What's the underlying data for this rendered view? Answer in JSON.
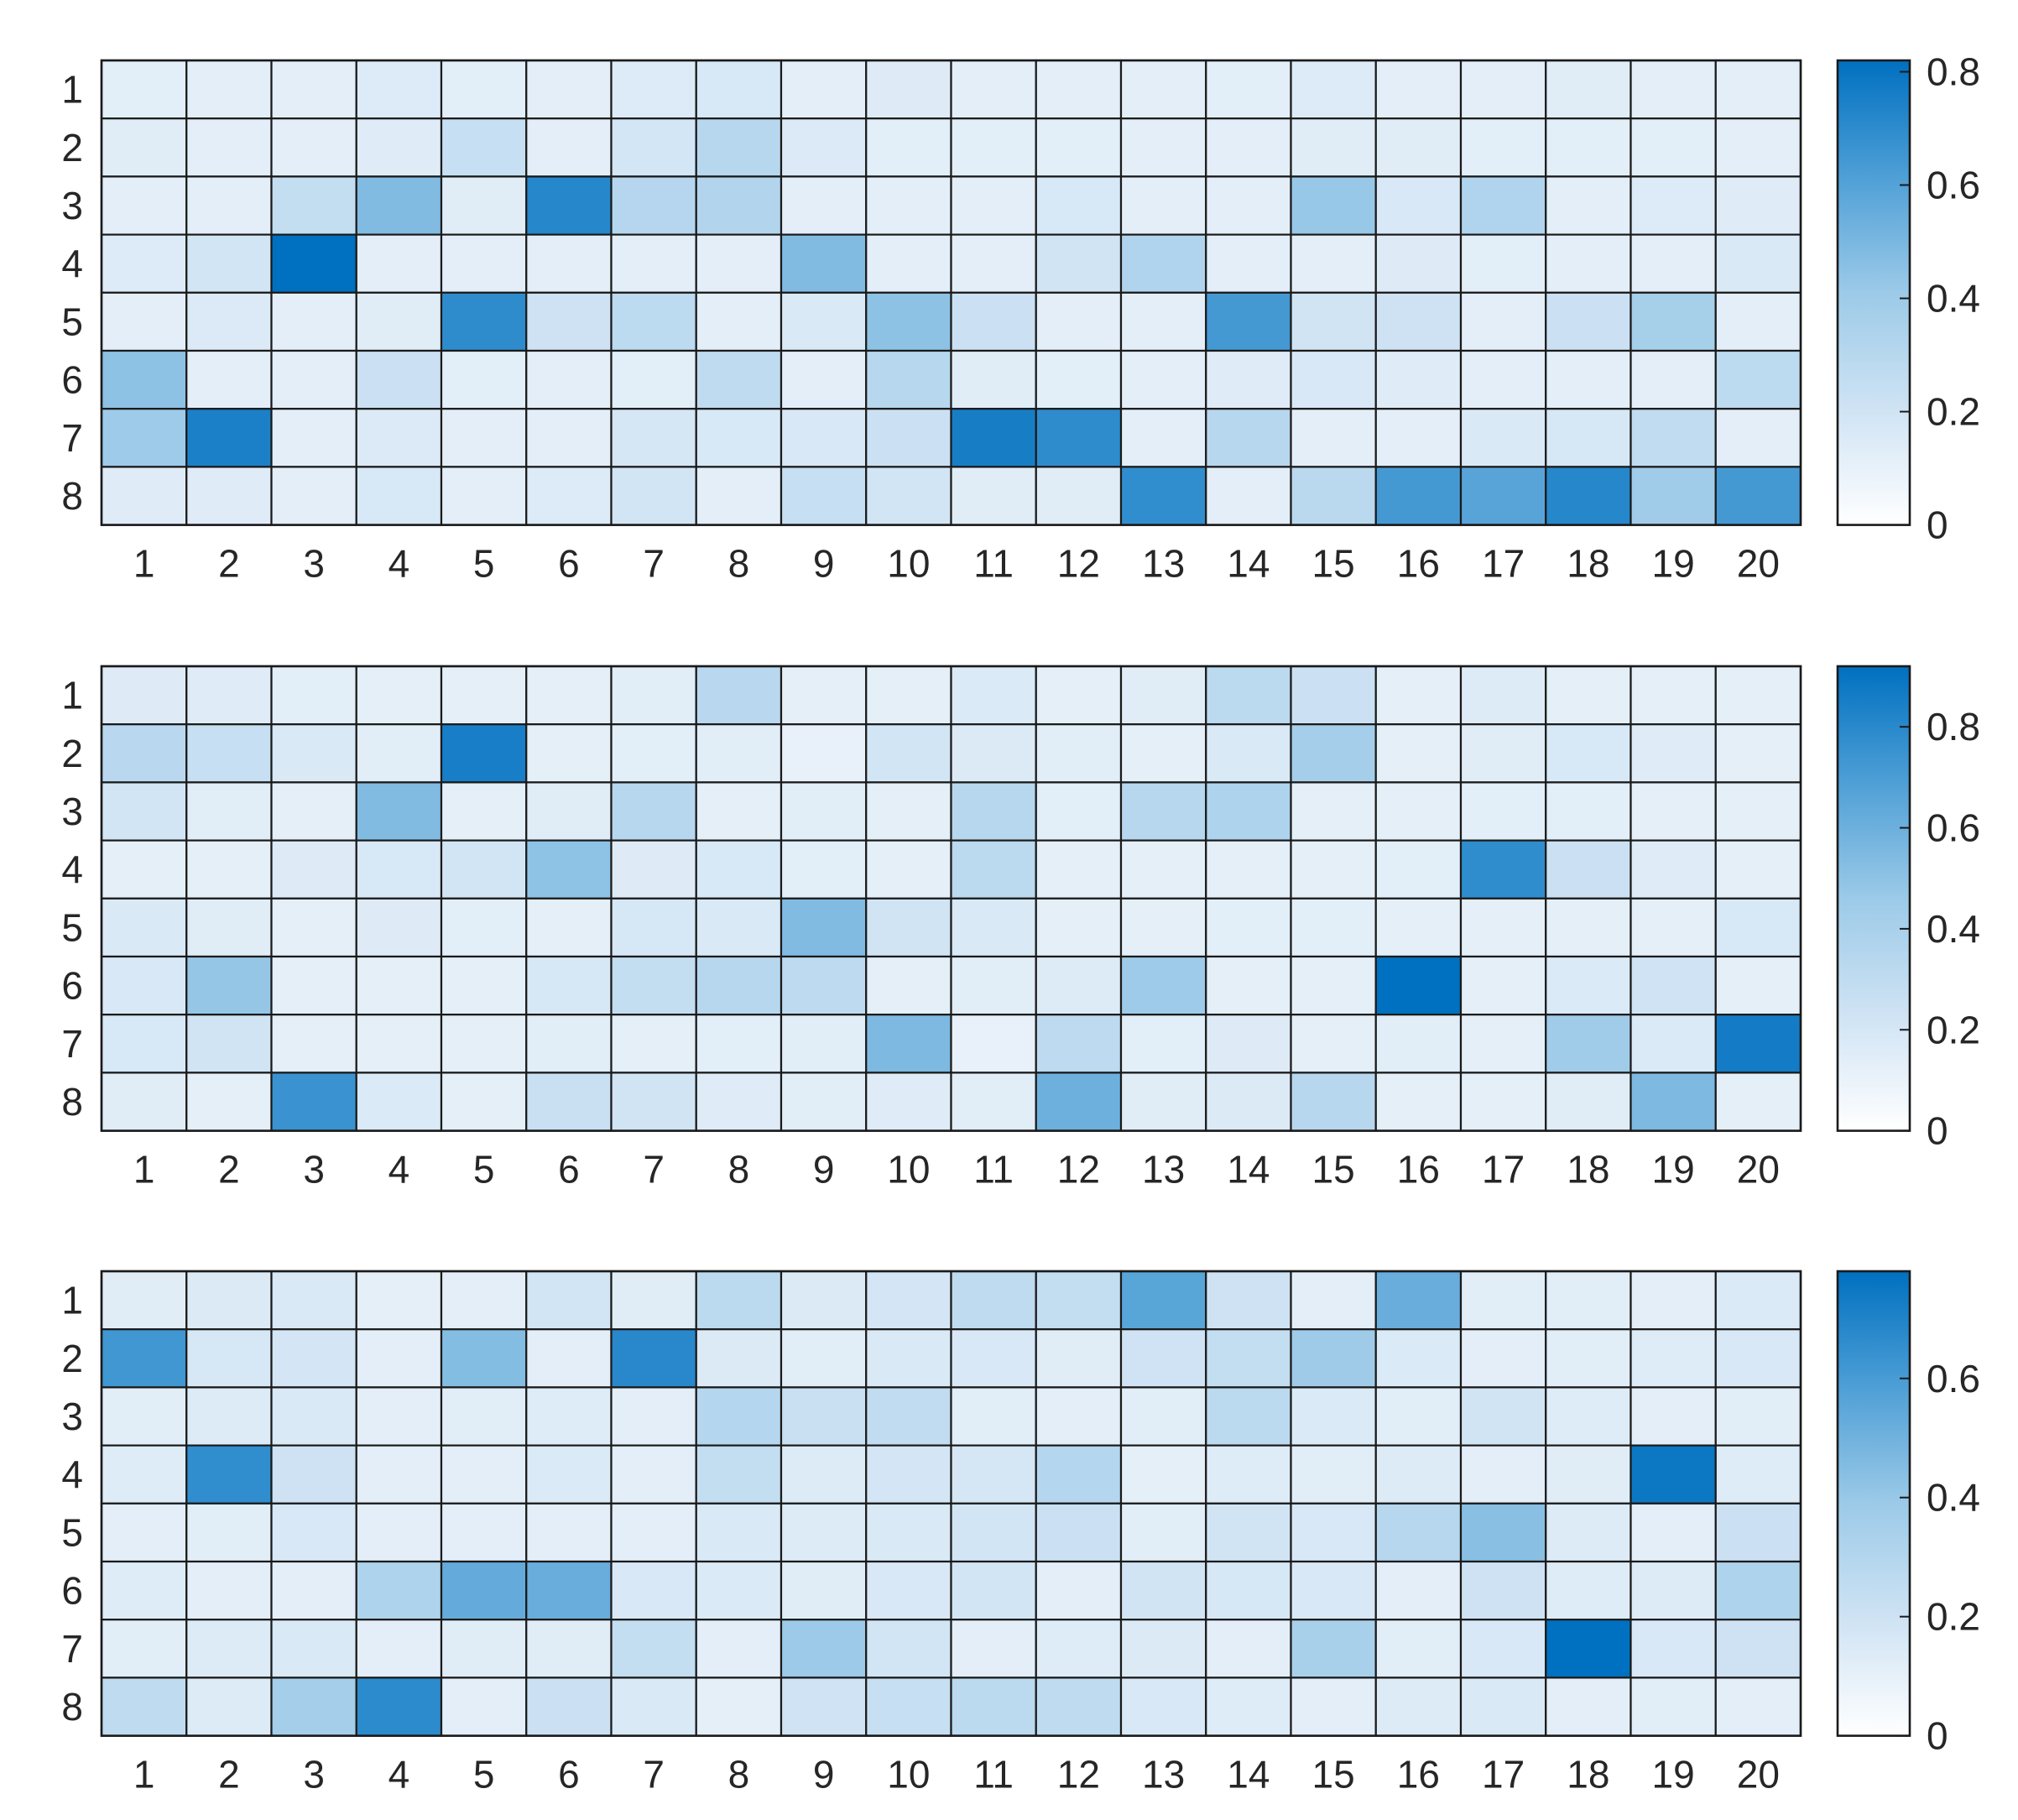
{
  "chart_data": [
    {
      "type": "heatmap",
      "x_categories": [
        "1",
        "2",
        "3",
        "4",
        "5",
        "6",
        "7",
        "8",
        "9",
        "10",
        "11",
        "12",
        "13",
        "14",
        "15",
        "16",
        "17",
        "18",
        "19",
        "20"
      ],
      "y_categories": [
        "1",
        "2",
        "3",
        "4",
        "5",
        "6",
        "7",
        "8"
      ],
      "colorbar": {
        "min": 0,
        "max": 0.82,
        "ticks": [
          "0",
          "0.2",
          "0.4",
          "0.6",
          "0.8"
        ],
        "tick_values": [
          0,
          0.2,
          0.4,
          0.6,
          0.8
        ]
      },
      "values": [
        [
          0.06,
          0.05,
          0.05,
          0.1,
          0.06,
          0.05,
          0.1,
          0.14,
          0.05,
          0.09,
          0.05,
          0.05,
          0.05,
          0.06,
          0.1,
          0.05,
          0.05,
          0.07,
          0.05,
          0.05
        ],
        [
          0.07,
          0.05,
          0.05,
          0.08,
          0.24,
          0.05,
          0.17,
          0.3,
          0.11,
          0.06,
          0.06,
          0.06,
          0.05,
          0.05,
          0.07,
          0.07,
          0.06,
          0.06,
          0.06,
          0.05
        ],
        [
          0.05,
          0.05,
          0.25,
          0.48,
          0.07,
          0.72,
          0.31,
          0.32,
          0.05,
          0.05,
          0.05,
          0.14,
          0.05,
          0.05,
          0.42,
          0.13,
          0.33,
          0.05,
          0.1,
          0.08
        ],
        [
          0.1,
          0.18,
          0.82,
          0.05,
          0.05,
          0.05,
          0.05,
          0.05,
          0.48,
          0.05,
          0.05,
          0.19,
          0.33,
          0.05,
          0.05,
          0.09,
          0.06,
          0.05,
          0.05,
          0.12
        ],
        [
          0.05,
          0.11,
          0.05,
          0.07,
          0.7,
          0.21,
          0.28,
          0.05,
          0.12,
          0.45,
          0.22,
          0.05,
          0.05,
          0.64,
          0.19,
          0.21,
          0.05,
          0.22,
          0.37,
          0.05
        ],
        [
          0.45,
          0.05,
          0.05,
          0.22,
          0.06,
          0.05,
          0.06,
          0.27,
          0.05,
          0.3,
          0.07,
          0.06,
          0.05,
          0.08,
          0.13,
          0.08,
          0.05,
          0.05,
          0.05,
          0.28
        ],
        [
          0.4,
          0.75,
          0.05,
          0.11,
          0.05,
          0.05,
          0.16,
          0.14,
          0.13,
          0.22,
          0.76,
          0.7,
          0.05,
          0.3,
          0.05,
          0.05,
          0.12,
          0.15,
          0.26,
          0.05
        ],
        [
          0.08,
          0.08,
          0.05,
          0.14,
          0.05,
          0.1,
          0.18,
          0.05,
          0.24,
          0.18,
          0.07,
          0.07,
          0.69,
          0.05,
          0.29,
          0.64,
          0.59,
          0.72,
          0.39,
          0.64
        ]
      ]
    },
    {
      "type": "heatmap",
      "x_categories": [
        "1",
        "2",
        "3",
        "4",
        "5",
        "6",
        "7",
        "8",
        "9",
        "10",
        "11",
        "12",
        "13",
        "14",
        "15",
        "16",
        "17",
        "18",
        "19",
        "20"
      ],
      "y_categories": [
        "1",
        "2",
        "3",
        "4",
        "5",
        "6",
        "7",
        "8"
      ],
      "colorbar": {
        "min": 0,
        "max": 0.92,
        "ticks": [
          "0",
          "0.2",
          "0.4",
          "0.6",
          "0.8"
        ],
        "tick_values": [
          0,
          0.2,
          0.4,
          0.6,
          0.8
        ]
      },
      "values": [
        [
          0.1,
          0.09,
          0.06,
          0.05,
          0.05,
          0.05,
          0.07,
          0.33,
          0.05,
          0.05,
          0.13,
          0.05,
          0.08,
          0.32,
          0.25,
          0.05,
          0.11,
          0.05,
          0.05,
          0.05
        ],
        [
          0.33,
          0.27,
          0.14,
          0.07,
          0.85,
          0.05,
          0.06,
          0.07,
          0.04,
          0.2,
          0.12,
          0.07,
          0.05,
          0.14,
          0.42,
          0.05,
          0.08,
          0.16,
          0.09,
          0.05
        ],
        [
          0.2,
          0.07,
          0.05,
          0.54,
          0.05,
          0.08,
          0.34,
          0.05,
          0.07,
          0.05,
          0.34,
          0.06,
          0.34,
          0.38,
          0.05,
          0.05,
          0.06,
          0.06,
          0.05,
          0.05
        ],
        [
          0.05,
          0.05,
          0.1,
          0.16,
          0.2,
          0.5,
          0.1,
          0.16,
          0.06,
          0.05,
          0.32,
          0.05,
          0.05,
          0.05,
          0.05,
          0.06,
          0.78,
          0.25,
          0.09,
          0.05
        ],
        [
          0.14,
          0.08,
          0.05,
          0.1,
          0.06,
          0.05,
          0.17,
          0.14,
          0.54,
          0.22,
          0.14,
          0.05,
          0.05,
          0.06,
          0.06,
          0.05,
          0.05,
          0.05,
          0.05,
          0.16
        ],
        [
          0.15,
          0.48,
          0.05,
          0.05,
          0.05,
          0.17,
          0.28,
          0.34,
          0.31,
          0.05,
          0.07,
          0.11,
          0.45,
          0.05,
          0.05,
          0.92,
          0.05,
          0.13,
          0.23,
          0.05
        ],
        [
          0.16,
          0.22,
          0.05,
          0.05,
          0.05,
          0.07,
          0.05,
          0.06,
          0.07,
          0.55,
          0.04,
          0.31,
          0.06,
          0.1,
          0.05,
          0.07,
          0.05,
          0.44,
          0.13,
          0.86
        ],
        [
          0.08,
          0.05,
          0.75,
          0.13,
          0.05,
          0.26,
          0.21,
          0.09,
          0.07,
          0.09,
          0.07,
          0.6,
          0.08,
          0.12,
          0.34,
          0.05,
          0.05,
          0.08,
          0.55,
          0.05
        ]
      ]
    },
    {
      "type": "heatmap",
      "x_categories": [
        "1",
        "2",
        "3",
        "4",
        "5",
        "6",
        "7",
        "8",
        "9",
        "10",
        "11",
        "12",
        "13",
        "14",
        "15",
        "16",
        "17",
        "18",
        "19",
        "20"
      ],
      "y_categories": [
        "1",
        "2",
        "3",
        "4",
        "5",
        "6",
        "7",
        "8"
      ],
      "colorbar": {
        "min": 0,
        "max": 0.78,
        "ticks": [
          "0",
          "0.2",
          "0.4",
          "0.6"
        ],
        "tick_values": [
          0,
          0.2,
          0.4,
          0.6
        ]
      },
      "values": [
        [
          0.07,
          0.1,
          0.12,
          0.04,
          0.05,
          0.17,
          0.07,
          0.27,
          0.1,
          0.16,
          0.26,
          0.24,
          0.56,
          0.2,
          0.05,
          0.52,
          0.06,
          0.06,
          0.05,
          0.11
        ],
        [
          0.62,
          0.14,
          0.16,
          0.05,
          0.45,
          0.05,
          0.68,
          0.1,
          0.06,
          0.12,
          0.13,
          0.07,
          0.19,
          0.24,
          0.38,
          0.11,
          0.05,
          0.06,
          0.08,
          0.13
        ],
        [
          0.06,
          0.09,
          0.12,
          0.05,
          0.06,
          0.08,
          0.05,
          0.3,
          0.22,
          0.25,
          0.06,
          0.05,
          0.06,
          0.27,
          0.11,
          0.06,
          0.18,
          0.08,
          0.05,
          0.06
        ],
        [
          0.08,
          0.66,
          0.2,
          0.05,
          0.05,
          0.11,
          0.05,
          0.24,
          0.09,
          0.16,
          0.15,
          0.3,
          0.04,
          0.08,
          0.06,
          0.09,
          0.05,
          0.07,
          0.75,
          0.08
        ],
        [
          0.05,
          0.06,
          0.13,
          0.05,
          0.05,
          0.05,
          0.05,
          0.12,
          0.09,
          0.12,
          0.17,
          0.21,
          0.06,
          0.18,
          0.13,
          0.29,
          0.44,
          0.09,
          0.05,
          0.21
        ],
        [
          0.08,
          0.05,
          0.05,
          0.32,
          0.53,
          0.52,
          0.13,
          0.11,
          0.07,
          0.13,
          0.17,
          0.05,
          0.18,
          0.14,
          0.13,
          0.05,
          0.2,
          0.08,
          0.09,
          0.32
        ],
        [
          0.06,
          0.09,
          0.12,
          0.05,
          0.07,
          0.07,
          0.24,
          0.05,
          0.39,
          0.17,
          0.05,
          0.08,
          0.1,
          0.05,
          0.34,
          0.06,
          0.13,
          0.78,
          0.13,
          0.2
        ],
        [
          0.26,
          0.09,
          0.36,
          0.67,
          0.05,
          0.21,
          0.12,
          0.04,
          0.19,
          0.23,
          0.27,
          0.26,
          0.13,
          0.08,
          0.05,
          0.09,
          0.12,
          0.05,
          0.06,
          0.05
        ]
      ]
    }
  ]
}
